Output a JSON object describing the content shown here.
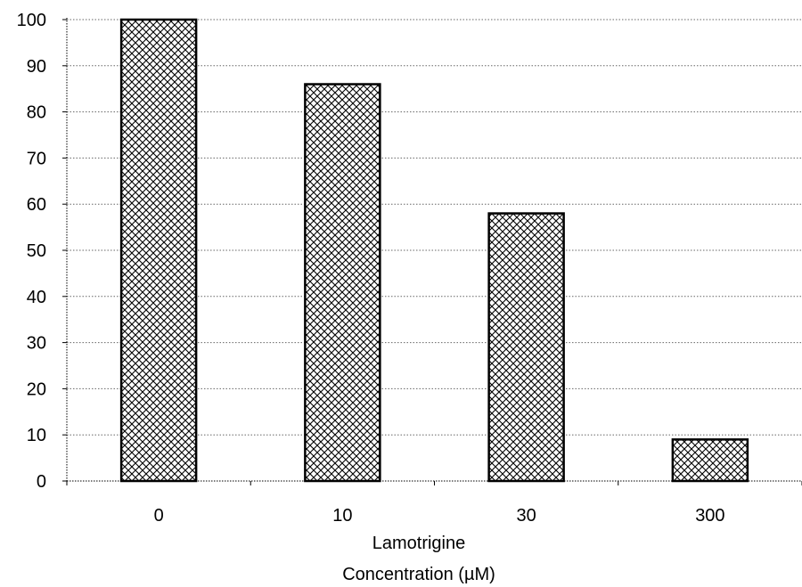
{
  "chart_data": {
    "type": "bar",
    "title": "",
    "categories": [
      "0",
      "10",
      "30",
      "300"
    ],
    "values": [
      100,
      86,
      58,
      9
    ],
    "xlabel_lines": [
      "Lamotrigine",
      "Concentration (µM)"
    ],
    "ylabel": "",
    "ylim": [
      0,
      100
    ],
    "yticks": [
      "0",
      "10",
      "20",
      "30",
      "40",
      "50",
      "60",
      "70",
      "80",
      "90",
      "100"
    ],
    "grid": true,
    "bar_fill": "crosshatch",
    "colors": {
      "bar_outline": "#000000",
      "hatch": "#000000",
      "background": "#ffffff"
    }
  }
}
